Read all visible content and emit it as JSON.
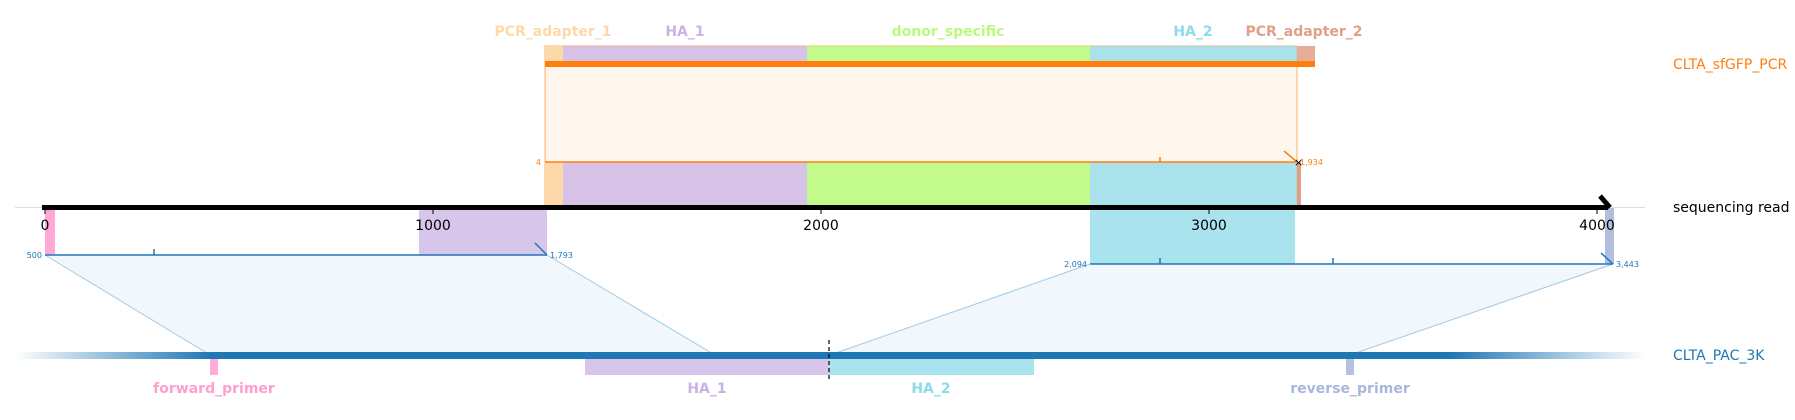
{
  "tracks": {
    "donor": {
      "name": "CLTA_sfGFP_PCR",
      "color": "#ff7f0e"
    },
    "read": {
      "name": "sequencing read",
      "color": "#000000"
    },
    "target": {
      "name": "CLTA_PAC_3K",
      "color": "#1f77b4"
    }
  },
  "read_axis": {
    "ticks": [
      "0",
      "1000",
      "2000",
      "3000",
      "4000"
    ]
  },
  "donor_features": [
    {
      "name": "PCR_adapter_1",
      "color": "#fdd9a9"
    },
    {
      "name": "HA_1",
      "color": "#c9b2e6"
    },
    {
      "name": "donor_specific",
      "color": "#b9fa7a"
    },
    {
      "name": "HA_2",
      "color": "#8cdbe8"
    },
    {
      "name": "PCR_adapter_2",
      "color": "#e29f87"
    }
  ],
  "target_features": [
    {
      "name": "forward_primer",
      "color": "#ff9ed1"
    },
    {
      "name": "HA_1",
      "color": "#c9b2e6"
    },
    {
      "name": "HA_2",
      "color": "#8cdbe8"
    },
    {
      "name": "reverse_primer",
      "color": "#a8b8db"
    }
  ],
  "alignments": {
    "donor": {
      "start": "4",
      "end": "1,934"
    },
    "target_left": {
      "start": "500",
      "end": "1,793"
    },
    "target_right": {
      "start": "2,094",
      "end": "3,443"
    }
  }
}
